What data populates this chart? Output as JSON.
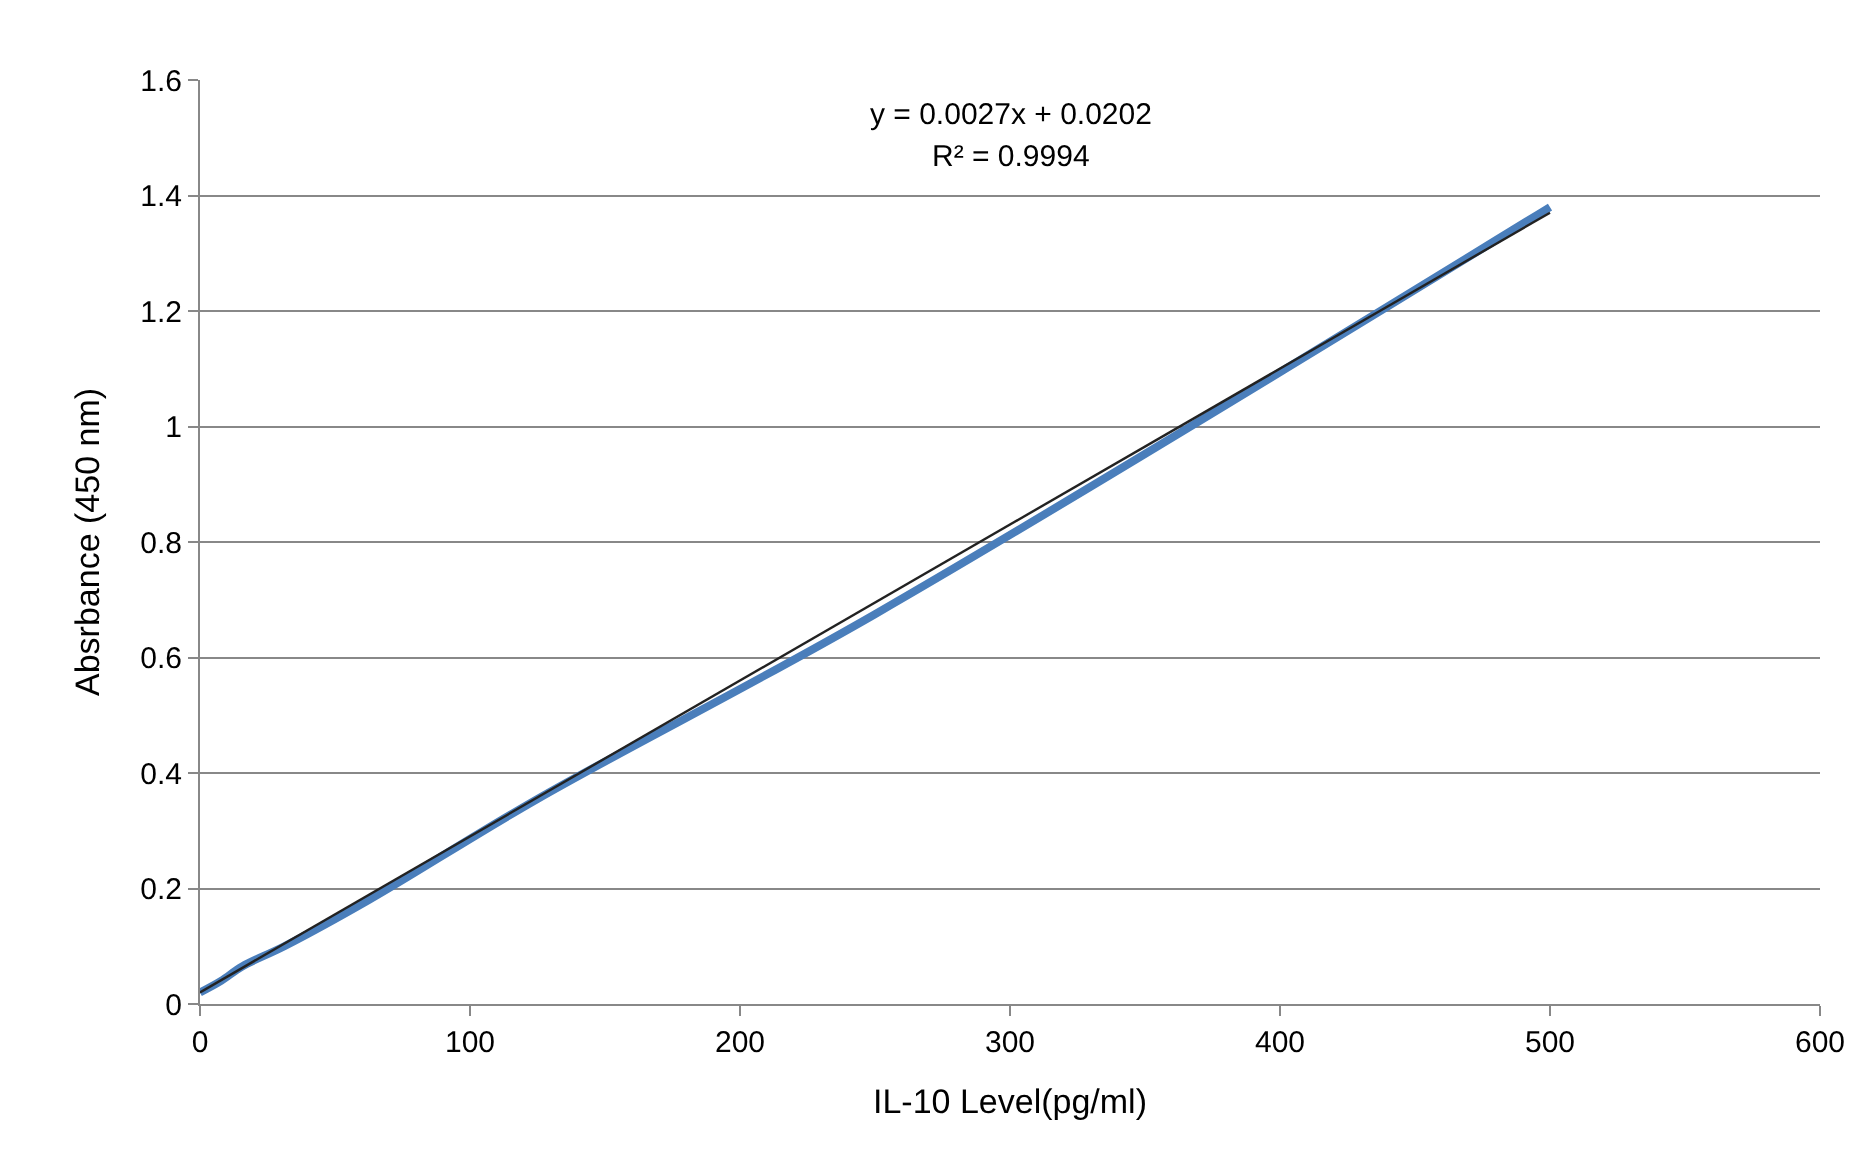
{
  "chart_data": {
    "type": "line",
    "xlabel": "IL-10 Level(pg/ml)",
    "ylabel": "Absrbance (450 nm)",
    "x": [
      0,
      7.8,
      15.6,
      31.25,
      62.5,
      125,
      250,
      500
    ],
    "series": [
      {
        "color": "#4a7ebb",
        "values": [
          0.02,
          0.04,
          0.065,
          0.1,
          0.18,
          0.355,
          0.675,
          1.38
        ]
      },
      {
        "type": "line",
        "color": "#222222",
        "x": [
          0,
          500
        ],
        "values": [
          0.0202,
          1.3702
        ]
      }
    ],
    "xlim": [
      0,
      600
    ],
    "xticks": [
      0,
      100,
      200,
      300,
      400,
      500,
      600
    ],
    "ylim": [
      0,
      1.6
    ],
    "yticks": [
      0,
      {
        "value": 0.2,
        "label": "0.2"
      },
      {
        "value": 0.4,
        "label": "0.4"
      },
      {
        "value": 0.6,
        "label": "0.6"
      },
      {
        "value": 0.8,
        "label": "0.8"
      },
      1,
      {
        "value": 1.2,
        "label": "1.2"
      },
      {
        "value": 1.4,
        "label": "1.4"
      },
      {
        "value": 1.6,
        "label": "1.6"
      }
    ],
    "grid": "y",
    "legend": false,
    "marker": "none",
    "line_style": "solid",
    "annotations": [
      "y = 0.0027x + 0.0202",
      "R² = 0.9994"
    ]
  }
}
